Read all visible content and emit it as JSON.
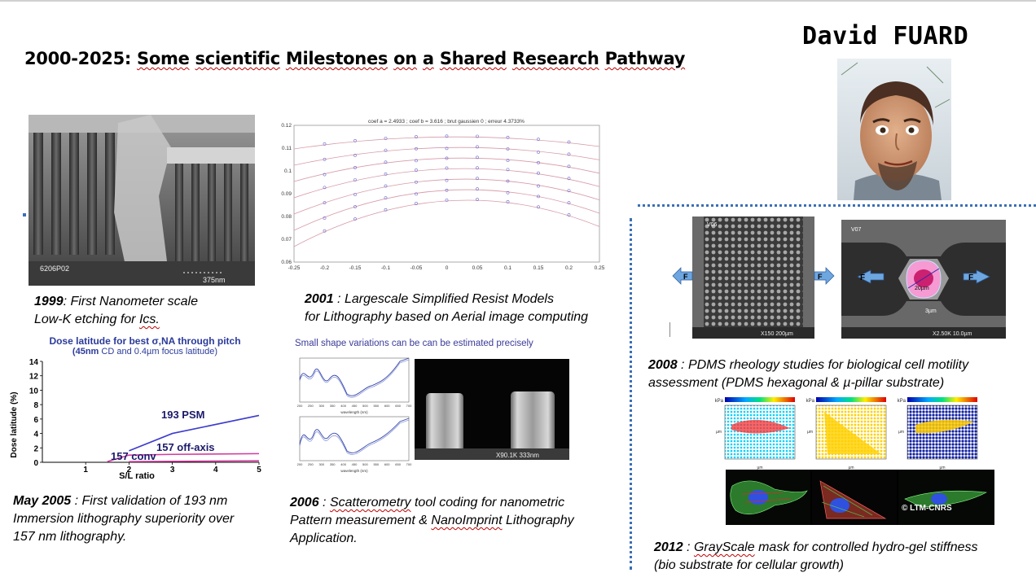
{
  "slide": {
    "title_prefix": "2000-2025: ",
    "title_words": [
      "Some",
      "scientific",
      "Milestones",
      "on",
      "a",
      "Shared",
      "Research",
      "Pathway"
    ],
    "author": "David FUARD"
  },
  "milestones": [
    {
      "year": "1999",
      "sep": ": ",
      "lines": [
        "First Nanometer scale",
        "Low-K etching for "
      ],
      "tail": "Ics."
    },
    {
      "year": "2001",
      "sep": " : ",
      "lines": [
        "Largescale Simplified Resist Models",
        "for Lithography based on Aerial image computing"
      ]
    },
    {
      "year": "May 2005",
      "sep": " : ",
      "lines": [
        "First validation of 193 nm",
        "Immersion  lithography superiority over",
        "157 nm lithography."
      ]
    },
    {
      "year": "2006",
      "sep": " : ",
      "word1": "Scatterometry",
      "line1_rest": " tool coding for nanometric",
      "line2_pre": "Pattern  measurement & ",
      "word2": "NanoImprint",
      "line2_rest": " Lithography",
      "line3": "Application."
    },
    {
      "year": "2008",
      "sep": " : ",
      "lines": [
        "PDMS rheology studies for biological cell motility",
        "assessment (PDMS hexagonal & µ-pillar substrate)"
      ]
    },
    {
      "year": "2012",
      "sep": " : ",
      "word1": "GrayScale",
      "line1_rest": " mask for controlled hydro-gel stiffness",
      "line2": "(bio substrate for cellular growth)"
    }
  ],
  "sem_1999": {
    "code": "6206P02",
    "scale": "375nm"
  },
  "plot_2001": {
    "header": "coef a = 2.4933  ;  coef b = 3.616  ;  brut gaussien 0  ;  erreur 4.3733%",
    "y_ticks": [
      "0.12",
      "0.11",
      "0.1",
      "0.09",
      "0.08",
      "0.07",
      "0.06"
    ],
    "x_ticks": [
      "-0.25",
      "-0.2",
      "-0.15",
      "-0.1",
      "-0.05",
      "0",
      "0.05",
      "0.1",
      "0.15",
      "0.2",
      "0.25"
    ]
  },
  "chart_data": {
    "type": "line",
    "title": "Dose latitude for best σ,NA through pitch",
    "subtitle_bold": "(45nm",
    "subtitle_rest": " CD and 0.4µm focus latitude)",
    "xlabel": "S/L ratio",
    "ylabel": "Dose latitude (%)",
    "xlim": [
      0,
      5
    ],
    "ylim": [
      0,
      14
    ],
    "x_ticks": [
      "1",
      "2",
      "3",
      "4",
      "5"
    ],
    "y_ticks": [
      "0",
      "2",
      "4",
      "6",
      "8",
      "10",
      "12",
      "14"
    ],
    "series": [
      {
        "name": "193 PSM",
        "color": "#3c3ccc",
        "x": [
          2,
          3,
          5
        ],
        "y": [
          1.6,
          4.0,
          6.5
        ]
      },
      {
        "name": "157 off-axis",
        "color": "#d63aa0",
        "x": [
          1.5,
          2,
          3,
          5
        ],
        "y": [
          0.1,
          1.0,
          1.1,
          1.2
        ]
      },
      {
        "name": "157 conv",
        "color": "#d63aa0",
        "x": [
          2,
          5
        ],
        "y": [
          0.1,
          0.2
        ]
      }
    ]
  },
  "scatt_2006": {
    "header": "Small shape variations can be can be estimated precisely",
    "xlabel": "wavelength (nm)",
    "x_ticks": [
      "200",
      "250",
      "300",
      "350",
      "400",
      "450",
      "500",
      "550",
      "600",
      "650",
      "700"
    ],
    "sem_scale": "X90.1K  333nm"
  },
  "sem_2008": {
    "left_code": "V06",
    "left_scale": "X150  200µm",
    "right_code": "V07",
    "right_scale": "X2.50K 10.0µm",
    "force": "F",
    "dim1": "20µm",
    "dim2": "3µm"
  },
  "maps_2012": {
    "unit": "kPa",
    "ylabel": "µm",
    "xlabel": "µm",
    "copyright": "© LTM-CNRS"
  },
  "colors": {
    "dotted_line": "#3b6fb6",
    "squiggle": "#c00000",
    "arrow_blue": "#6ea6e0"
  }
}
